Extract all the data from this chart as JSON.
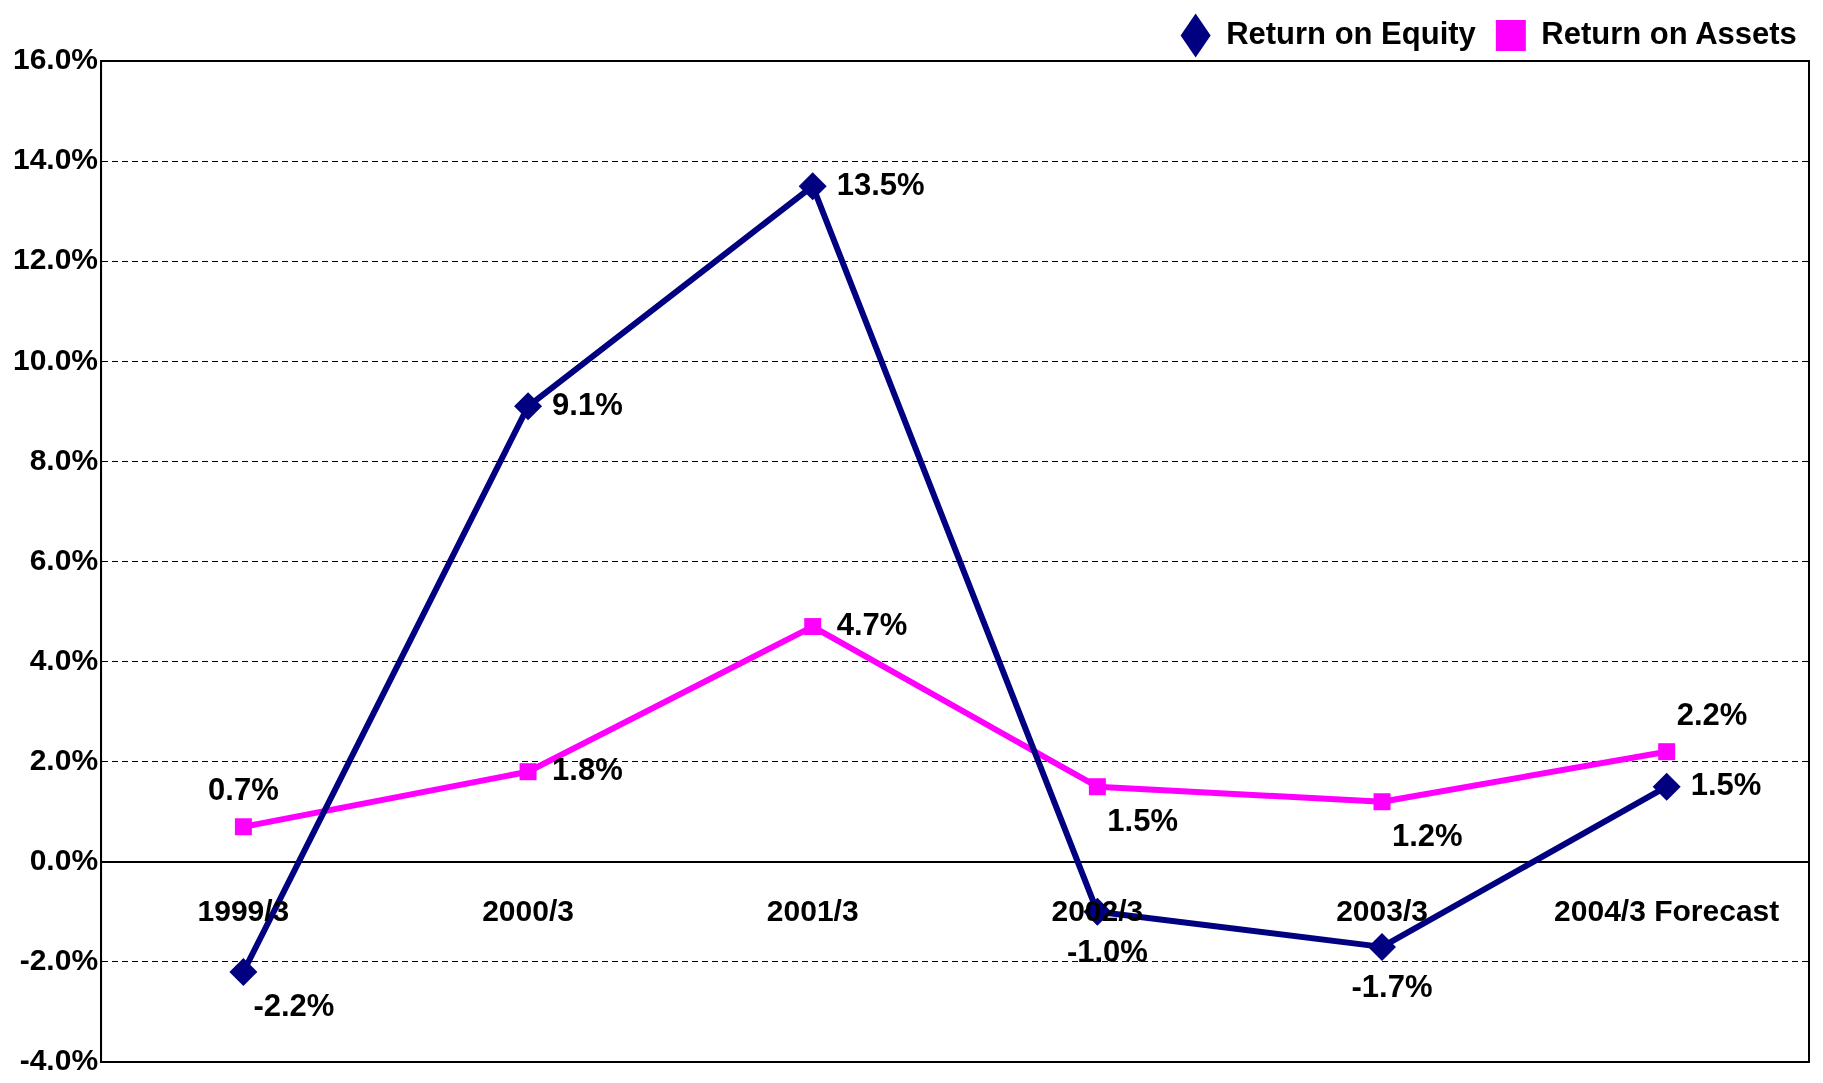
{
  "chart_data": {
    "type": "line",
    "categories": [
      "1999/3",
      "2000/3",
      "2001/3",
      "2002/3",
      "2003/3",
      "2004/3 Forecast"
    ],
    "series": [
      {
        "name": "Return on Equity",
        "color": "#000080",
        "marker": "diamond",
        "values": [
          -2.2,
          9.1,
          13.5,
          -1.0,
          -1.7,
          1.5
        ],
        "value_labels": [
          "-2.2%",
          "9.1%",
          "13.5%",
          "-1.0%",
          "-1.7%",
          "1.5%"
        ]
      },
      {
        "name": "Return on Assets",
        "color": "#ff00ff",
        "marker": "square",
        "values": [
          0.7,
          1.8,
          4.7,
          1.5,
          1.2,
          2.2
        ],
        "value_labels": [
          "0.7%",
          "1.8%",
          "4.7%",
          "1.5%",
          "1.2%",
          "2.2%"
        ]
      }
    ],
    "ylim": [
      -4,
      16
    ],
    "yticks": [
      {
        "value": -4,
        "label": "-4.0%"
      },
      {
        "value": -2,
        "label": "-2.0%"
      },
      {
        "value": 0,
        "label": "0.0%"
      },
      {
        "value": 2,
        "label": "2.0%"
      },
      {
        "value": 4,
        "label": "4.0%"
      },
      {
        "value": 6,
        "label": "6.0%"
      },
      {
        "value": 8,
        "label": "8.0%"
      },
      {
        "value": 10,
        "label": "10.0%"
      },
      {
        "value": 12,
        "label": "12.0%"
      },
      {
        "value": 14,
        "label": "14.0%"
      },
      {
        "value": 16,
        "label": "16.0%"
      }
    ],
    "grid": "y",
    "legend": "top right",
    "line_style": "solid"
  }
}
